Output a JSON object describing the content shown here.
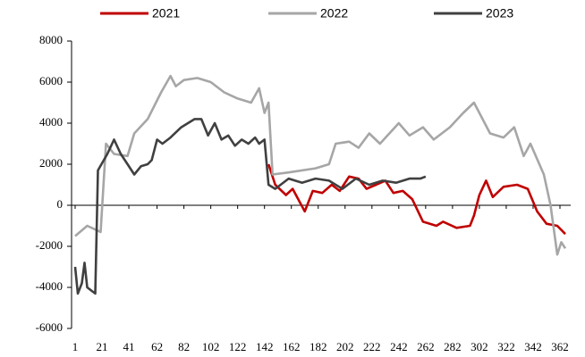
{
  "chart_data": {
    "type": "line",
    "xlim": [
      1,
      366
    ],
    "xticks": [
      1,
      21,
      41,
      62,
      82,
      102,
      122,
      142,
      162,
      182,
      202,
      222,
      242,
      262,
      282,
      302,
      322,
      342,
      362
    ],
    "ylim": [
      -6000,
      8000
    ],
    "yticks": [
      -6000,
      -4000,
      -2000,
      0,
      2000,
      4000,
      6000,
      8000
    ],
    "series": [
      {
        "name": "2021",
        "color": "#c00000",
        "x": [
          145,
          150,
          158,
          163,
          172,
          178,
          185,
          192,
          198,
          205,
          212,
          218,
          225,
          232,
          238,
          245,
          252,
          260,
          270,
          275,
          285,
          295,
          298,
          302,
          307,
          312,
          320,
          330,
          338,
          345,
          352,
          360,
          366
        ],
        "values": [
          2000,
          1000,
          500,
          800,
          -300,
          700,
          600,
          1000,
          700,
          1400,
          1300,
          800,
          1000,
          1200,
          600,
          700,
          300,
          -800,
          -1000,
          -800,
          -1100,
          -1000,
          -500,
          500,
          1200,
          400,
          900,
          1000,
          800,
          -300,
          -900,
          -1000,
          -1400
        ]
      },
      {
        "name": "2022",
        "color": "#a6a6a6",
        "x": [
          1,
          10,
          20,
          24,
          30,
          40,
          45,
          55,
          65,
          72,
          76,
          82,
          92,
          102,
          112,
          122,
          132,
          138,
          142,
          145,
          148,
          160,
          180,
          190,
          195,
          205,
          212,
          220,
          228,
          235,
          242,
          250,
          260,
          268,
          280,
          290,
          298,
          310,
          320,
          328,
          335,
          340,
          350,
          355,
          360,
          363,
          366
        ],
        "values": [
          -1500,
          -1000,
          -1300,
          3000,
          2500,
          2400,
          3500,
          4200,
          5500,
          6300,
          5800,
          6100,
          6200,
          6000,
          5500,
          5200,
          5000,
          5700,
          4500,
          5000,
          1500,
          1600,
          1800,
          2000,
          3000,
          3100,
          2800,
          3500,
          3000,
          3500,
          4000,
          3400,
          3800,
          3200,
          3800,
          4500,
          5000,
          3500,
          3300,
          3800,
          2400,
          3000,
          1500,
          0,
          -2400,
          -1800,
          -2100
        ]
      },
      {
        "name": "2023",
        "color": "#404040",
        "x": [
          1,
          3,
          6,
          8,
          10,
          14,
          16,
          18,
          25,
          30,
          35,
          40,
          45,
          50,
          55,
          58,
          62,
          66,
          72,
          80,
          90,
          95,
          100,
          105,
          110,
          115,
          120,
          125,
          130,
          135,
          138,
          142,
          145,
          150,
          160,
          170,
          180,
          190,
          200,
          210,
          220,
          230,
          240,
          250,
          258,
          262
        ],
        "values": [
          -3000,
          -4300,
          -3800,
          -2800,
          -4000,
          -4200,
          -4300,
          1700,
          2500,
          3200,
          2500,
          2000,
          1500,
          1900,
          2000,
          2200,
          3200,
          3000,
          3300,
          3800,
          4200,
          4200,
          3400,
          4000,
          3200,
          3400,
          2900,
          3200,
          3000,
          3300,
          3000,
          3200,
          1000,
          800,
          1300,
          1100,
          1300,
          1200,
          800,
          1300,
          1000,
          1200,
          1100,
          1300,
          1300,
          1400
        ]
      }
    ]
  }
}
